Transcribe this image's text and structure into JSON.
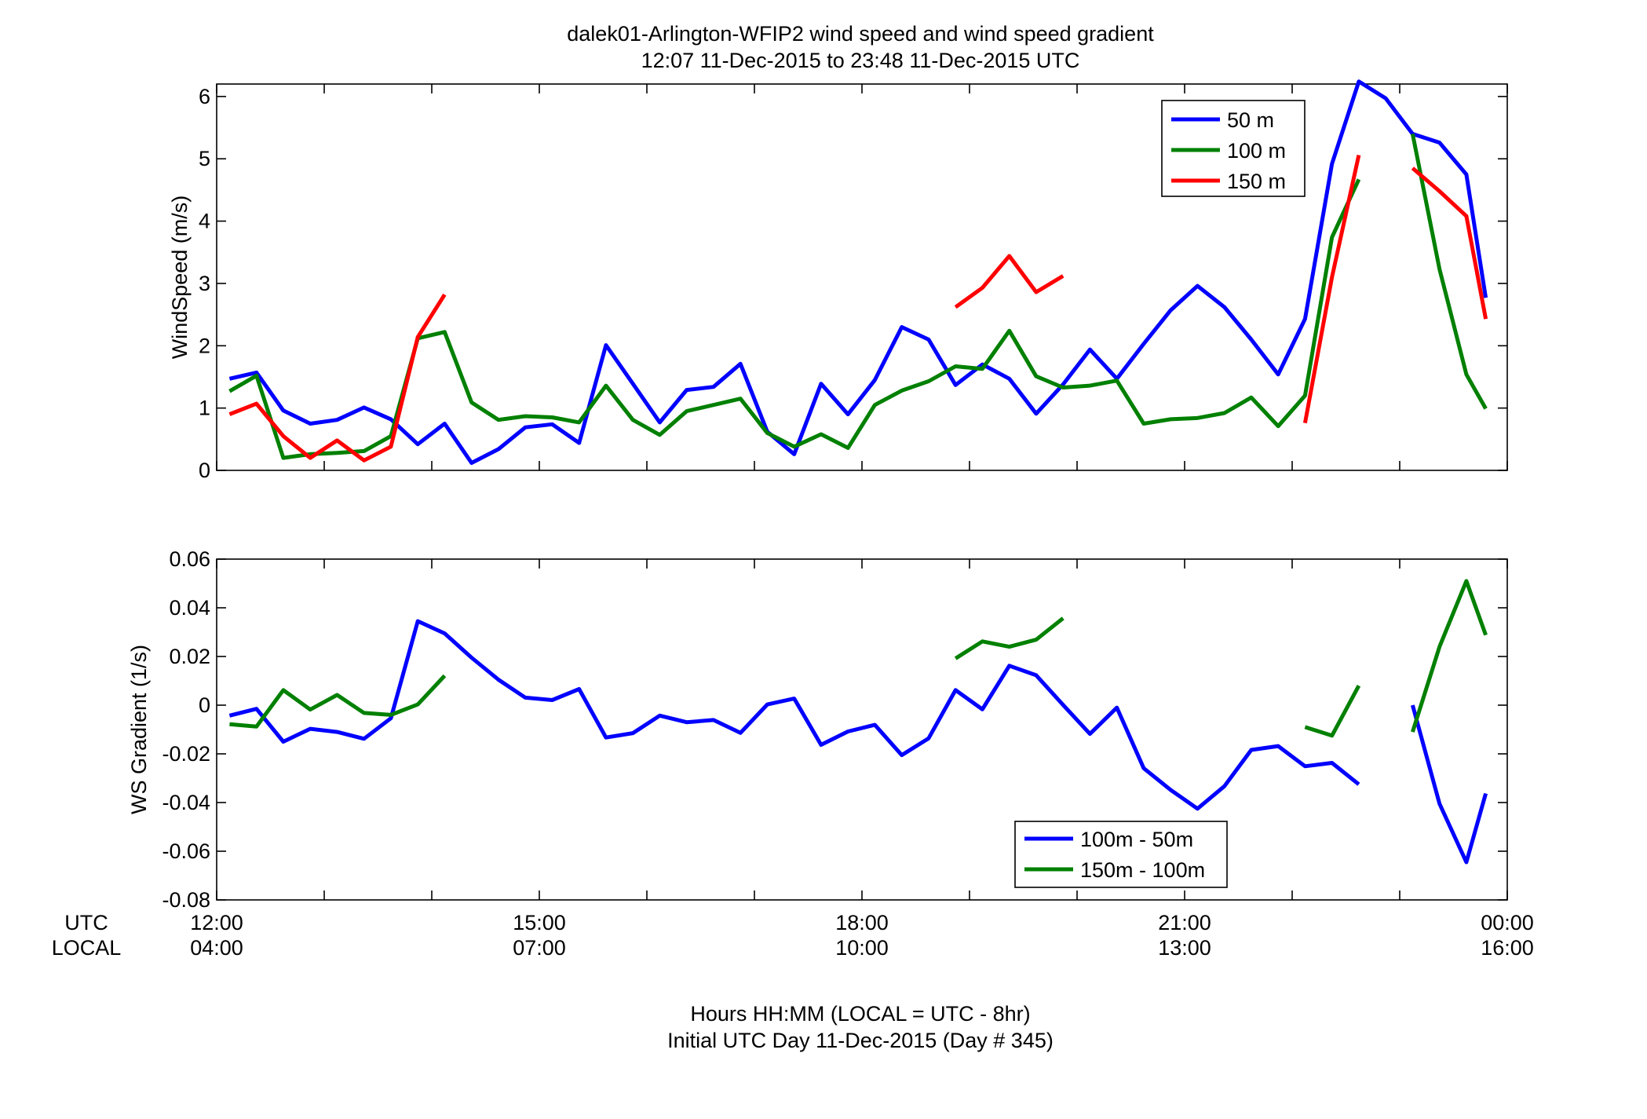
{
  "figure": {
    "title_line1": "dalek01-Arlington-WFIP2  wind speed and wind speed gradient",
    "title_line2": "12:07 11-Dec-2015 to 23:48 11-Dec-2015  UTC",
    "xlabel_line1": "Hours HH:MM  (LOCAL = UTC - 8hr)",
    "xlabel_line2": "Initial UTC Day 11-Dec-2015 (Day # 345)",
    "utc_row_label": "UTC",
    "local_row_label": "LOCAL",
    "x_ticks_utc": [
      "12:00",
      "15:00",
      "18:00",
      "21:00",
      "00:00"
    ],
    "x_ticks_local": [
      "04:00",
      "07:00",
      "10:00",
      "13:00",
      "16:00"
    ]
  },
  "chart_data": [
    {
      "type": "line",
      "ylabel": "WindSpeed (m/s)",
      "xlabel": "Hours HH:MM  (LOCAL = UTC - 8hr)",
      "xlim": [
        12.0,
        24.0
      ],
      "ylim": [
        0,
        6.2
      ],
      "yticks": [
        0,
        1,
        2,
        3,
        4,
        5,
        6
      ],
      "ytick_labels": [
        "0",
        "1",
        "2",
        "3",
        "4",
        "5",
        "6"
      ],
      "legend_position": "top-right",
      "grid": false,
      "x": [
        12.12,
        12.37,
        12.62,
        12.87,
        13.12,
        13.37,
        13.62,
        13.87,
        14.12,
        14.37,
        14.62,
        14.87,
        15.12,
        15.37,
        15.62,
        15.87,
        16.12,
        16.37,
        16.62,
        16.87,
        17.12,
        17.37,
        17.62,
        17.87,
        18.12,
        18.37,
        18.62,
        18.87,
        19.12,
        19.37,
        19.62,
        19.87,
        20.12,
        20.37,
        20.62,
        20.87,
        21.12,
        21.37,
        21.62,
        21.87,
        22.12,
        22.37,
        22.62,
        22.87,
        23.12,
        23.37,
        23.62,
        23.8
      ],
      "series": [
        {
          "name": "50 m",
          "color": "#0000ff",
          "values": [
            1.47,
            1.57,
            0.96,
            0.75,
            0.81,
            1.01,
            0.82,
            0.42,
            0.75,
            0.12,
            0.34,
            0.69,
            0.74,
            0.44,
            2.01,
            1.39,
            0.77,
            1.29,
            1.34,
            1.71,
            0.62,
            0.26,
            1.39,
            0.9,
            1.45,
            2.3,
            2.1,
            1.37,
            1.7,
            1.47,
            0.91,
            1.38,
            1.94,
            1.47,
            2.03,
            2.57,
            2.96,
            2.62,
            2.1,
            1.54,
            2.43,
            4.92,
            6.24,
            5.97,
            5.4,
            5.26,
            4.75,
            2.77
          ]
        },
        {
          "name": "100 m",
          "color": "#008000",
          "values": [
            1.27,
            1.52,
            0.2,
            0.26,
            0.28,
            0.31,
            0.55,
            2.12,
            2.22,
            1.09,
            0.81,
            0.87,
            0.85,
            0.77,
            1.36,
            0.81,
            0.57,
            0.95,
            1.05,
            1.15,
            0.6,
            0.38,
            0.58,
            0.36,
            1.05,
            1.28,
            1.43,
            1.67,
            1.63,
            2.24,
            1.51,
            1.33,
            1.36,
            1.44,
            0.75,
            0.82,
            0.84,
            0.92,
            1.17,
            0.71,
            1.2,
            3.74,
            4.67,
            null,
            5.4,
            3.23,
            1.54,
            0.99
          ]
        },
        {
          "name": "150 m",
          "color": "#ff0000",
          "values": [
            0.9,
            1.07,
            0.55,
            0.2,
            0.48,
            0.16,
            0.38,
            2.14,
            2.82,
            null,
            null,
            null,
            null,
            null,
            null,
            null,
            null,
            null,
            null,
            null,
            null,
            null,
            null,
            null,
            null,
            null,
            null,
            2.62,
            2.93,
            3.44,
            2.86,
            3.12,
            null,
            null,
            null,
            null,
            null,
            null,
            null,
            null,
            0.76,
            3.1,
            5.06,
            null,
            4.85,
            4.48,
            4.08,
            2.43
          ]
        }
      ]
    },
    {
      "type": "line",
      "ylabel": "WS Gradient (1/s)",
      "xlabel": "Hours HH:MM  (LOCAL = UTC - 8hr)",
      "xlim": [
        12.0,
        24.0
      ],
      "ylim": [
        -0.08,
        0.06
      ],
      "yticks": [
        -0.08,
        -0.06,
        -0.04,
        -0.02,
        0,
        0.02,
        0.04,
        0.06
      ],
      "ytick_labels": [
        "-0.08",
        "-0.06",
        "-0.04",
        "-0.02",
        "0",
        "0.02",
        "0.04",
        "0.06"
      ],
      "legend_position": "bottom-right",
      "grid": false,
      "x": [
        12.12,
        12.37,
        12.62,
        12.87,
        13.12,
        13.37,
        13.62,
        13.87,
        14.12,
        14.37,
        14.62,
        14.87,
        15.12,
        15.37,
        15.62,
        15.87,
        16.12,
        16.37,
        16.62,
        16.87,
        17.12,
        17.37,
        17.62,
        17.87,
        18.12,
        18.37,
        18.62,
        18.87,
        19.12,
        19.37,
        19.62,
        19.87,
        20.12,
        20.37,
        20.62,
        20.87,
        21.12,
        21.37,
        21.62,
        21.87,
        22.12,
        22.37,
        22.62,
        22.87,
        23.12,
        23.37,
        23.62,
        23.8
      ],
      "series": [
        {
          "name": "100m - 50m",
          "color": "#0000ff",
          "values": [
            -0.0043,
            -0.0015,
            -0.015,
            -0.0097,
            -0.011,
            -0.0138,
            -0.0054,
            0.0345,
            0.0295,
            0.0195,
            0.0105,
            0.0031,
            0.0021,
            0.0066,
            -0.0133,
            -0.0115,
            -0.0043,
            -0.007,
            -0.0061,
            -0.0114,
            0.0003,
            0.0027,
            -0.0163,
            -0.0108,
            -0.0081,
            -0.0205,
            -0.0136,
            0.0062,
            -0.0017,
            0.0162,
            0.0123,
            0.0001,
            -0.0118,
            -0.001,
            -0.0259,
            -0.0348,
            -0.0425,
            -0.0333,
            -0.0184,
            -0.0168,
            -0.0251,
            -0.0237,
            -0.0325,
            null,
            0.0,
            -0.0405,
            -0.0645,
            -0.0363
          ]
        },
        {
          "name": "150m - 100m",
          "color": "#008000",
          "values": [
            -0.0078,
            -0.0088,
            0.0062,
            -0.0018,
            0.0042,
            -0.0032,
            -0.004,
            0.0003,
            0.0121,
            null,
            null,
            null,
            null,
            null,
            null,
            null,
            null,
            null,
            null,
            null,
            null,
            null,
            null,
            null,
            null,
            null,
            null,
            0.0192,
            0.0262,
            0.024,
            0.0269,
            0.0357,
            null,
            null,
            null,
            null,
            null,
            null,
            null,
            null,
            -0.009,
            -0.0125,
            0.008,
            null,
            -0.011,
            0.024,
            0.051,
            0.0288
          ]
        }
      ]
    }
  ]
}
